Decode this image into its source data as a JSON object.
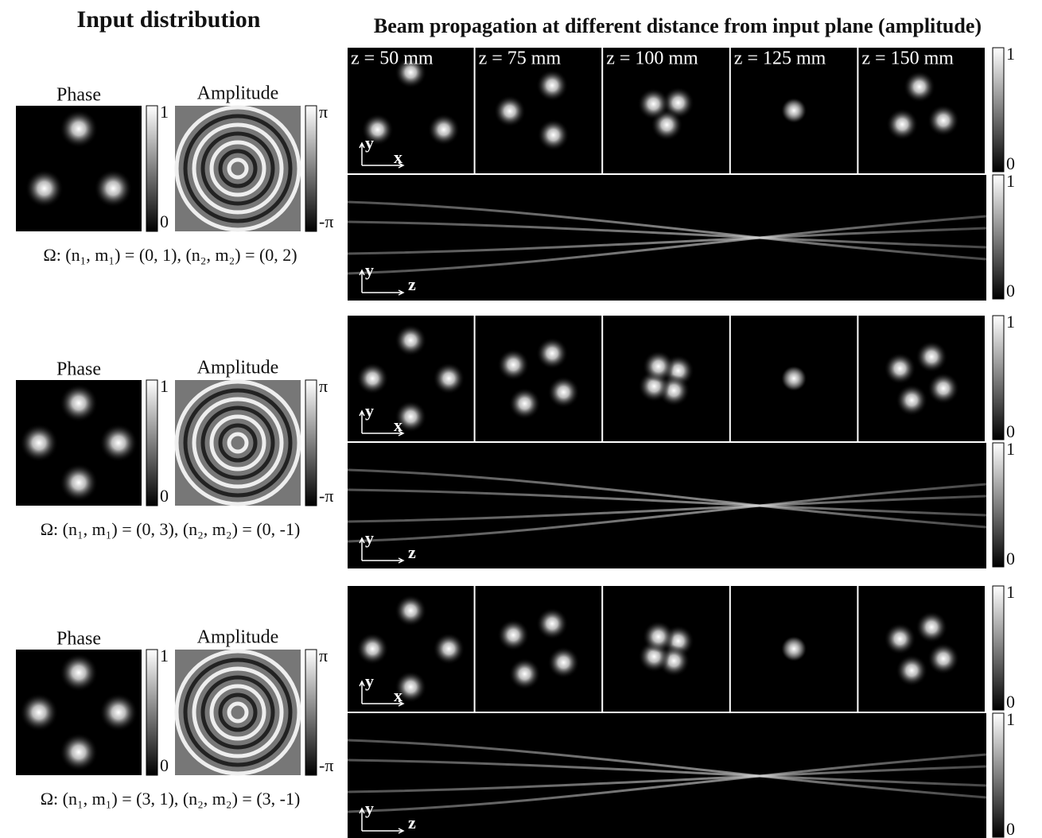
{
  "header": {
    "left_title": "Input distribution",
    "right_title": "Beam propagation at different distance from input plane (amplitude)"
  },
  "z_labels": [
    "z = 50 mm",
    "z = 75 mm",
    "z = 100 mm",
    "z = 125 mm",
    "z = 150 mm"
  ],
  "rows": [
    {
      "phase_title": "Phase",
      "amplitude_title": "Amplitude",
      "phase_bar": [
        "1",
        "0"
      ],
      "amplitude_bar": [
        "π",
        "-π"
      ],
      "mode_label": "Ω: (n₁, m₁) = (0, 1), (n₂, m₂) = (0, 2)",
      "xy_axes": [
        "y",
        "x"
      ],
      "yz_axes": [
        "y",
        "z"
      ],
      "xy_bar": [
        "1",
        "0"
      ],
      "yz_bar": [
        "1",
        "0"
      ]
    },
    {
      "phase_title": "Phase",
      "amplitude_title": "Amplitude",
      "phase_bar": [
        "1",
        "0"
      ],
      "amplitude_bar": [
        "π",
        "-π"
      ],
      "mode_label": "Ω: (n₁, m₁) = (0, 3), (n₂, m₂) = (0, -1)",
      "xy_axes": [
        "y",
        "x"
      ],
      "yz_axes": [
        "y",
        "z"
      ],
      "xy_bar": [
        "1",
        "0"
      ],
      "yz_bar": [
        "1",
        "0"
      ]
    },
    {
      "phase_title": "Phase",
      "amplitude_title": "Amplitude",
      "phase_bar": [
        "1",
        "0"
      ],
      "amplitude_bar": [
        "π",
        "-π"
      ],
      "mode_label": "Ω: (n₁, m₁) = (3, 1), (n₂, m₂) = (3, -1)",
      "xy_axes": [
        "y",
        "x"
      ],
      "yz_axes": [
        "y",
        "z"
      ],
      "xy_bar": [
        "1",
        "0"
      ],
      "yz_bar": [
        "1",
        "0"
      ]
    }
  ]
}
